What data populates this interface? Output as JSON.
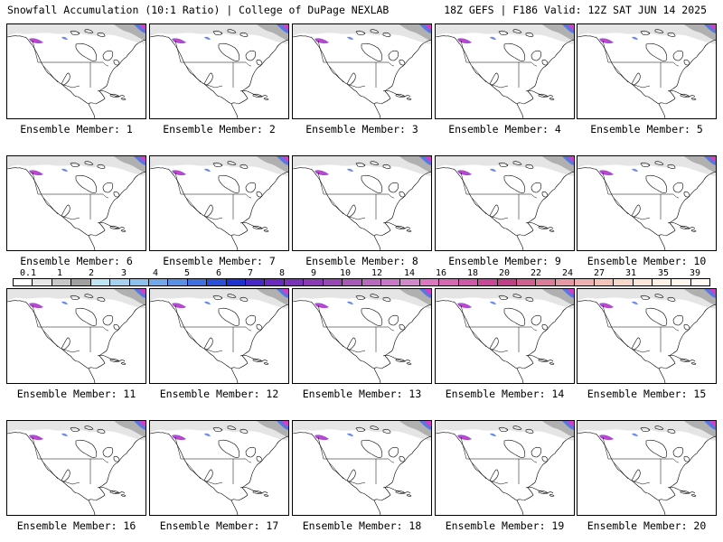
{
  "header": {
    "title": "Snowfall Accumulation (10:1 Ratio) | College of DuPage NEXLAB",
    "run_info": "18Z GEFS | F186 Valid: 12Z SAT JUN 14 2025"
  },
  "panels": [
    {
      "label": "Ensemble Member: 1"
    },
    {
      "label": "Ensemble Member: 2"
    },
    {
      "label": "Ensemble Member: 3"
    },
    {
      "label": "Ensemble Member: 4"
    },
    {
      "label": "Ensemble Member: 5"
    },
    {
      "label": "Ensemble Member: 6"
    },
    {
      "label": "Ensemble Member: 7"
    },
    {
      "label": "Ensemble Member: 8"
    },
    {
      "label": "Ensemble Member: 9"
    },
    {
      "label": "Ensemble Member: 10"
    },
    {
      "label": "Ensemble Member: 11"
    },
    {
      "label": "Ensemble Member: 12"
    },
    {
      "label": "Ensemble Member: 13"
    },
    {
      "label": "Ensemble Member: 14"
    },
    {
      "label": "Ensemble Member: 15"
    },
    {
      "label": "Ensemble Member: 16"
    },
    {
      "label": "Ensemble Member: 17"
    },
    {
      "label": "Ensemble Member: 18"
    },
    {
      "label": "Ensemble Member: 19"
    },
    {
      "label": "Ensemble Member: 20"
    }
  ],
  "colorbar": {
    "labels": [
      "0.1",
      "1",
      "2",
      "3",
      "4",
      "5",
      "6",
      "7",
      "8",
      "9",
      "10",
      "12",
      "14",
      "16",
      "18",
      "20",
      "22",
      "24",
      "27",
      "31",
      "35",
      "39"
    ],
    "colors": [
      "#ffffff",
      "#e6e6e6",
      "#c8c8c8",
      "#a0a0a0",
      "#bfe6f5",
      "#a6d2f2",
      "#8cc0ee",
      "#72a8ea",
      "#5890e6",
      "#4070e0",
      "#2a50da",
      "#1e32d2",
      "#4a28c8",
      "#6a2ac0",
      "#7a32b8",
      "#8a3ab4",
      "#9848b4",
      "#a858b8",
      "#b868be",
      "#c878c6",
      "#d488cc",
      "#dc78c0",
      "#d868b4",
      "#d058a8",
      "#c84898",
      "#c04088",
      "#d06090",
      "#dc7c98",
      "#e698a4",
      "#eeb0b0",
      "#f4c4b8",
      "#f8d8c8",
      "#fbe8d8",
      "#fdf2e6",
      "#fff6ec",
      "#fffaf4"
    ]
  },
  "colors": {
    "outline": "#000000",
    "snow_light": "#cfcfcf",
    "snow_blue": "#4a6ee8",
    "snow_purple": "#9a3ad0",
    "snow_magenta": "#d040c8"
  }
}
